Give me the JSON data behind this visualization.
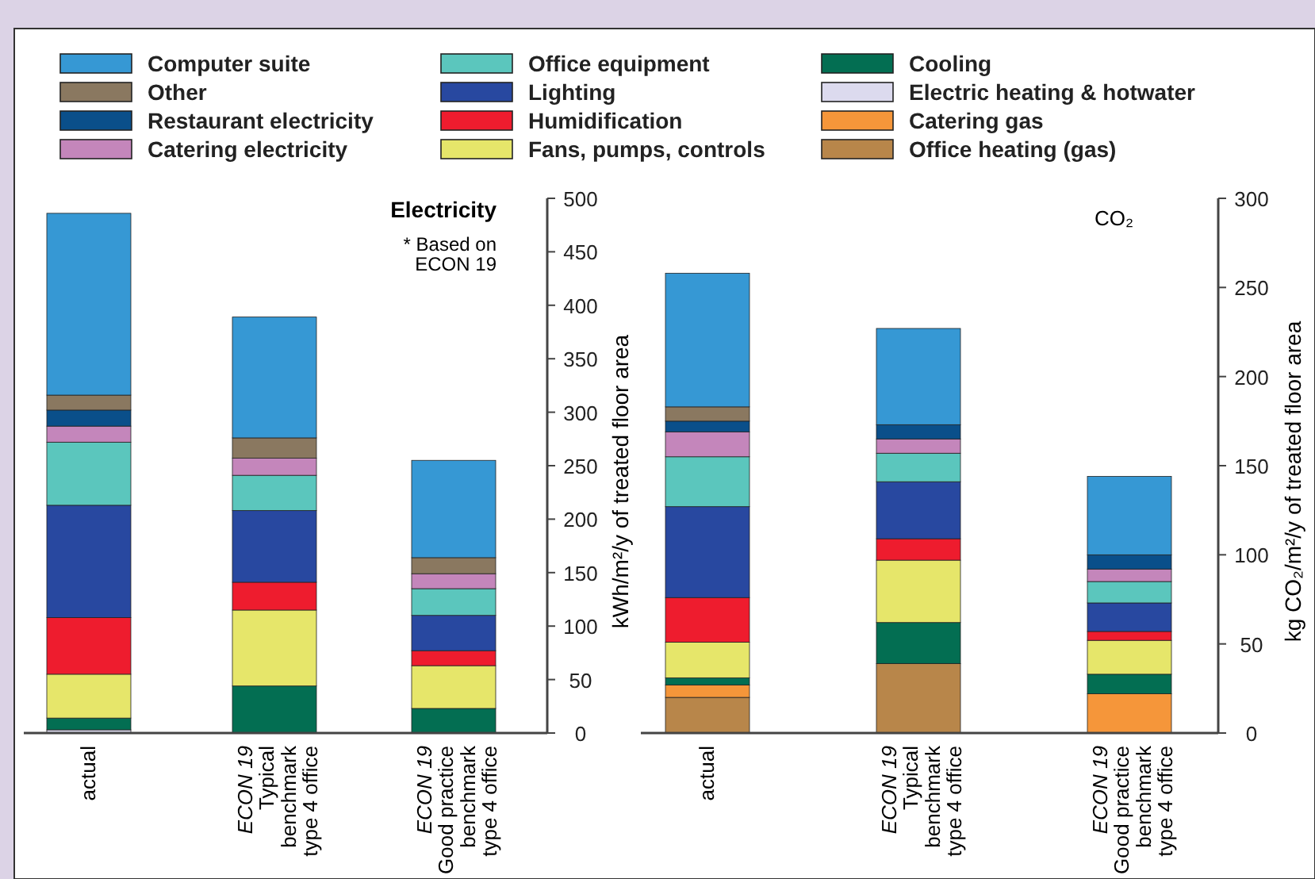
{
  "chart_data": [
    {
      "type": "bar",
      "stacked": true,
      "legend": "top",
      "grid": false,
      "categories": [
        "actual",
        "ECON 19\nTypical\nbenchmark\ntype 4 office",
        "ECON 19\nGood practice\nbenchmark\ntype 4 office"
      ],
      "ylim": [
        0,
        500
      ],
      "yticks": [
        0,
        50,
        100,
        150,
        200,
        250,
        300,
        350,
        400,
        450,
        500
      ],
      "ylabel": "kWh/m²/y of treated floor area",
      "annotations": [
        "Electricity",
        "* Based on\nECON 19"
      ],
      "series": [
        {
          "name": "Office heating (gas)",
          "color": "#b8864a",
          "values": [
            null,
            null,
            null
          ]
        },
        {
          "name": "Catering gas",
          "color": "#f5963a",
          "values": [
            null,
            null,
            null
          ]
        },
        {
          "name": "Electric heating & hotwater",
          "color": "#dcdaee",
          "values": [
            3,
            null,
            null
          ]
        },
        {
          "name": "Cooling",
          "color": "#036e52",
          "values": [
            11,
            44,
            23
          ]
        },
        {
          "name": "Fans, pumps, controls",
          "color": "#e6e66a",
          "values": [
            41,
            71,
            40
          ]
        },
        {
          "name": "Humidification",
          "color": "#ee1c2e",
          "values": [
            53,
            26,
            14
          ]
        },
        {
          "name": "Lighting",
          "color": "#2848a0",
          "values": [
            105,
            67,
            33
          ]
        },
        {
          "name": "Office equipment",
          "color": "#5bc6bd",
          "values": [
            59,
            33,
            25
          ]
        },
        {
          "name": "Catering electricity",
          "color": "#c486bb",
          "values": [
            15,
            16,
            14
          ]
        },
        {
          "name": "Restaurant electricity",
          "color": "#0a4f8a",
          "values": [
            15,
            null,
            null
          ]
        },
        {
          "name": "Other",
          "color": "#8a7860",
          "values": [
            14,
            19,
            15
          ]
        },
        {
          "name": "Computer suite",
          "color": "#3698d4",
          "values": [
            170,
            113,
            91
          ]
        }
      ]
    },
    {
      "type": "bar",
      "stacked": true,
      "grid": false,
      "categories": [
        "actual",
        "ECON 19\nTypical\nbenchmark\ntype 4 office",
        "ECON 19\nGood practice\nbenchmark\ntype 4 office"
      ],
      "ylim": [
        0,
        300
      ],
      "yticks": [
        0,
        50,
        100,
        150,
        200,
        250,
        300
      ],
      "ylabel": "kg CO₂/m²/y of treated floor area",
      "annotations": [
        "CO₂"
      ],
      "series": [
        {
          "color": "#b8864a",
          "values": [
            20,
            39,
            null
          ]
        },
        {
          "color": "#f5963a",
          "values": [
            7,
            null,
            22
          ]
        },
        {
          "color": "#036e52",
          "values": [
            4,
            23,
            11
          ]
        },
        {
          "color": "#e6e66a",
          "values": [
            20,
            35,
            19
          ]
        },
        {
          "color": "#ee1c2e",
          "values": [
            25,
            12,
            5
          ]
        },
        {
          "color": "#2848a0",
          "values": [
            51,
            32,
            16
          ]
        },
        {
          "color": "#5bc6bd",
          "values": [
            28,
            16,
            12
          ]
        },
        {
          "color": "#c486bb",
          "values": [
            14,
            8,
            7
          ]
        },
        {
          "color": "#0a4f8a",
          "values": [
            6,
            8,
            8
          ]
        },
        {
          "color": "#8a7860",
          "values": [
            8,
            null,
            null
          ]
        },
        {
          "color": "#3698d4",
          "values": [
            75,
            54,
            44
          ]
        }
      ]
    }
  ]
}
